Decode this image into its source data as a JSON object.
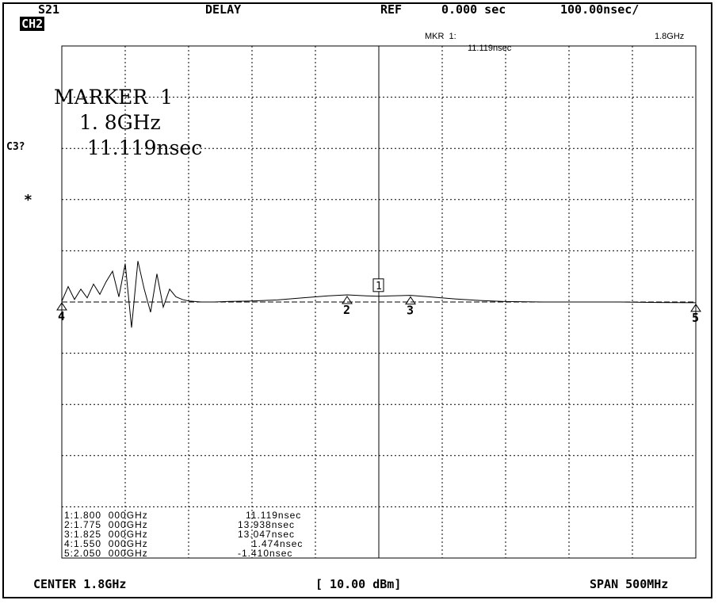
{
  "header": {
    "channel": "CH2",
    "param": "S21",
    "format": "DELAY",
    "ref_label": "REF",
    "ref_value": "0.000 sec",
    "scale": "100.00nsec/"
  },
  "marker_readout": {
    "line1_label": "MKR  1:",
    "line1_value": "1.8GHz",
    "line2_value": "11.119nsec"
  },
  "marker_big": {
    "title": "MARKER  1",
    "freq": "1. 8GHz",
    "value": "11.119nsec"
  },
  "side": {
    "cal": "C3?",
    "star": "*"
  },
  "marker_table": [
    {
      "idx": "1:",
      "freq": "1.800  000GHz",
      "val": "11.119nsec"
    },
    {
      "idx": "2:",
      "freq": "1.775  000GHz",
      "val": "13.938nsec"
    },
    {
      "idx": "3:",
      "freq": "1.825  000GHz",
      "val": "13.047nsec"
    },
    {
      "idx": "4:",
      "freq": "1.550  000GHz",
      "val": "1.474nsec"
    },
    {
      "idx": "5:",
      "freq": "2.050  000GHz",
      "val": "-1.410nsec"
    }
  ],
  "footer": {
    "center": "CENTER 1.8GHz",
    "power": "[ 10.00 dBm]",
    "span": "SPAN 500MHz"
  },
  "chart_data": {
    "type": "line",
    "x_unit": "GHz",
    "y_unit": "nsec",
    "xlim": [
      1.55,
      2.05
    ],
    "ylim": [
      -500,
      500
    ],
    "ref_value": 0,
    "y_per_div": 100,
    "grid": true,
    "series": [
      {
        "x": [
          1.55,
          1.555,
          1.56,
          1.565,
          1.57,
          1.575,
          1.58,
          1.585,
          1.59,
          1.595,
          1.6,
          1.605,
          1.61,
          1.615,
          1.62,
          1.625,
          1.63,
          1.635,
          1.64,
          1.645,
          1.65,
          1.66,
          1.67,
          1.68,
          1.7,
          1.72,
          1.74,
          1.76,
          1.775,
          1.79,
          1.8,
          1.81,
          1.825,
          1.84,
          1.86,
          1.88,
          1.9,
          1.93,
          1.96,
          1.99,
          2.02,
          2.05
        ],
        "y": [
          1.5,
          30,
          5,
          25,
          8,
          35,
          15,
          40,
          60,
          10,
          75,
          -50,
          80,
          25,
          -20,
          55,
          -10,
          25,
          10,
          5,
          2,
          0,
          0,
          1,
          2,
          4,
          8,
          12,
          13.9,
          12,
          11.1,
          12,
          13.0,
          10,
          6,
          3,
          1,
          0,
          0,
          0,
          -1,
          -1.4
        ]
      }
    ],
    "markers": [
      {
        "n": "1",
        "x": 1.8,
        "y": 11.119,
        "style": "box"
      },
      {
        "n": "2",
        "x": 1.775,
        "y": 13.938,
        "style": "triangle"
      },
      {
        "n": "3",
        "x": 1.825,
        "y": 13.047,
        "style": "triangle"
      },
      {
        "n": "4",
        "x": 1.55,
        "y": 1.474,
        "style": "triangle"
      },
      {
        "n": "5",
        "x": 2.05,
        "y": -1.41,
        "style": "triangle"
      }
    ]
  }
}
